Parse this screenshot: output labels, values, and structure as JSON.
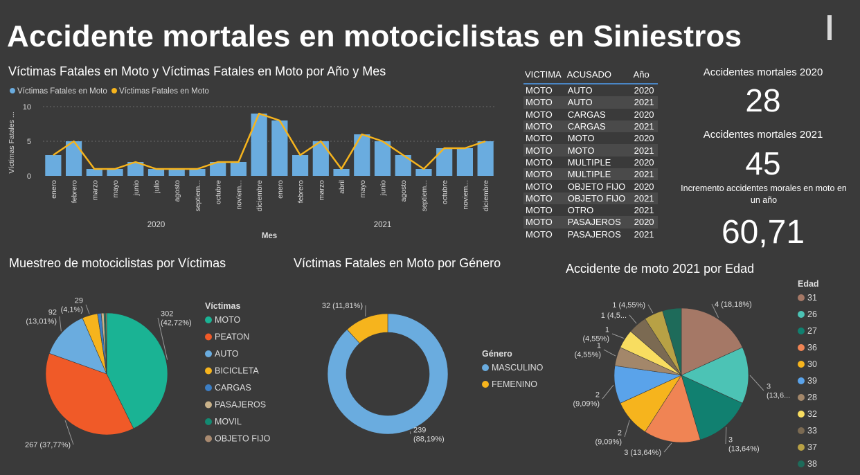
{
  "header": {
    "title": "Accidente mortales en motociclistas en Siniestros"
  },
  "colors": {
    "bar": "#6aacdf",
    "line": "#f6b41d"
  },
  "combo": {
    "title": "Víctimas Fatales en Moto y Víctimas Fatales en Moto por Año y Mes",
    "legend": [
      "Víctimas Fatales en Moto",
      "Víctimas Fatales en Moto"
    ],
    "ylabel": "Víctimas Fatales ...",
    "xlabel": "Mes"
  },
  "table": {
    "headers": [
      "VICTIMA",
      "ACUSADO",
      "Año"
    ],
    "rows": [
      [
        "MOTO",
        "AUTO",
        "2020"
      ],
      [
        "MOTO",
        "AUTO",
        "2021"
      ],
      [
        "MOTO",
        "CARGAS",
        "2020"
      ],
      [
        "MOTO",
        "CARGAS",
        "2021"
      ],
      [
        "MOTO",
        "MOTO",
        "2020"
      ],
      [
        "MOTO",
        "MOTO",
        "2021"
      ],
      [
        "MOTO",
        "MULTIPLE",
        "2020"
      ],
      [
        "MOTO",
        "MULTIPLE",
        "2021"
      ],
      [
        "MOTO",
        "OBJETO FIJO",
        "2020"
      ],
      [
        "MOTO",
        "OBJETO FIJO",
        "2021"
      ],
      [
        "MOTO",
        "OTRO",
        "2021"
      ],
      [
        "MOTO",
        "PASAJEROS",
        "2020"
      ],
      [
        "MOTO",
        "PASAJEROS",
        "2021"
      ]
    ]
  },
  "kpis": {
    "k2020_label": "Accidentes mortales 2020",
    "k2020_value": "28",
    "k2021_label": "Accidentes mortales 2021",
    "k2021_value": "45",
    "inc_label_1": "Incremento accidentes morales en moto en",
    "inc_label_2": "un año",
    "inc_value": "60,71"
  },
  "chart_data": [
    {
      "type": "bar",
      "title": "Víctimas Fatales en Moto y Víctimas Fatales en Moto por Año y Mes",
      "xlabel": "Mes",
      "ylabel": "Víctimas Fatales ...",
      "ylim": [
        0,
        10
      ],
      "yticks": [
        0,
        5,
        10
      ],
      "groups": [
        {
          "name": "2020",
          "categories": [
            "enero",
            "febrero",
            "marzo",
            "mayo",
            "junio",
            "julio",
            "agosto",
            "septiem...",
            "octubre",
            "noviem...",
            "diciembre"
          ]
        },
        {
          "name": "2021",
          "categories": [
            "enero",
            "febrero",
            "marzo",
            "abril",
            "mayo",
            "junio",
            "agosto",
            "septiem...",
            "octubre",
            "noviem...",
            "diciembre"
          ]
        }
      ],
      "series": [
        {
          "name": "Víctimas Fatales en Moto",
          "type": "bar",
          "values": [
            3,
            5,
            1,
            1,
            2,
            1,
            1,
            1,
            2,
            2,
            9,
            8,
            3,
            5,
            1,
            6,
            5,
            3,
            1,
            4,
            4,
            5
          ]
        },
        {
          "name": "Víctimas Fatales en Moto",
          "type": "line",
          "values": [
            3,
            5,
            1,
            1,
            2,
            1,
            1,
            1,
            2,
            2,
            9,
            8,
            3,
            5,
            1,
            6,
            5,
            3,
            1,
            4,
            4,
            5
          ]
        }
      ],
      "grid": true,
      "legend": "top-left"
    },
    {
      "type": "pie",
      "title": "Muestreo de motociclistas por Víctimas",
      "legend_title": "Víctimas",
      "legend": "right",
      "slices": [
        {
          "label": "MOTO",
          "value": 302,
          "display": "302\n(42,72%)",
          "color": "#1ab394"
        },
        {
          "label": "PEATON",
          "value": 267,
          "display": "267 (37,77%)",
          "color": "#f05a28"
        },
        {
          "label": "AUTO",
          "value": 92,
          "display": "92\n(13,01%)",
          "color": "#6aacdf"
        },
        {
          "label": "BICICLETA",
          "value": 29,
          "display": "29\n(4,1%)",
          "color": "#f6b41d"
        },
        {
          "label": "CARGAS",
          "value": 7,
          "display": "",
          "color": "#3c7ec4"
        },
        {
          "label": "PASAJEROS",
          "value": 5,
          "display": "",
          "color": "#c9b28a"
        },
        {
          "label": "MOVIL",
          "value": 3,
          "display": "",
          "color": "#138a72"
        },
        {
          "label": "OBJETO FIJO",
          "value": 2,
          "display": "",
          "color": "#a98a70"
        }
      ]
    },
    {
      "type": "pie",
      "title": "Víctimas Fatales en Moto por Género",
      "donut": true,
      "legend_title": "Género",
      "legend": "right",
      "slices": [
        {
          "label": "MASCULINO",
          "value": 239,
          "display": "239\n(88,19%)",
          "color": "#6aacdf"
        },
        {
          "label": "FEMENINO",
          "value": 32,
          "display": "32 (11,81%)",
          "color": "#f6b41d"
        }
      ]
    },
    {
      "type": "pie",
      "title": "Accidente de moto 2021 por Edad",
      "legend_title": "Edad",
      "legend": "right",
      "slices": [
        {
          "label": "31",
          "value": 4,
          "display": "4 (18,18%)",
          "color": "#a57866"
        },
        {
          "label": "26",
          "value": 3,
          "display": "3\n(13,6...",
          "color": "#4cc3b5"
        },
        {
          "label": "27",
          "value": 3,
          "display": "3\n(13,64%)",
          "color": "#118070"
        },
        {
          "label": "36",
          "value": 3,
          "display": "3 (13,64%)",
          "color": "#f08454"
        },
        {
          "label": "30",
          "value": 2,
          "display": "2\n(9,09%)",
          "color": "#f6b41d"
        },
        {
          "label": "39",
          "value": 2,
          "display": "2\n(9,09%)",
          "color": "#5aa3ea"
        },
        {
          "label": "28",
          "value": 1,
          "display": "1\n(4,55%)",
          "color": "#a3876a"
        },
        {
          "label": "32",
          "value": 1,
          "display": "1\n(4,55%)",
          "color": "#f8dd60"
        },
        {
          "label": "33",
          "value": 1,
          "display": "1 (4,5...",
          "color": "#7b6a52"
        },
        {
          "label": "37",
          "value": 1,
          "display": "1 (4,55%)",
          "color": "#b8a145"
        },
        {
          "label": "38",
          "value": 1,
          "display": "",
          "color": "#1e6b5a"
        }
      ]
    }
  ]
}
